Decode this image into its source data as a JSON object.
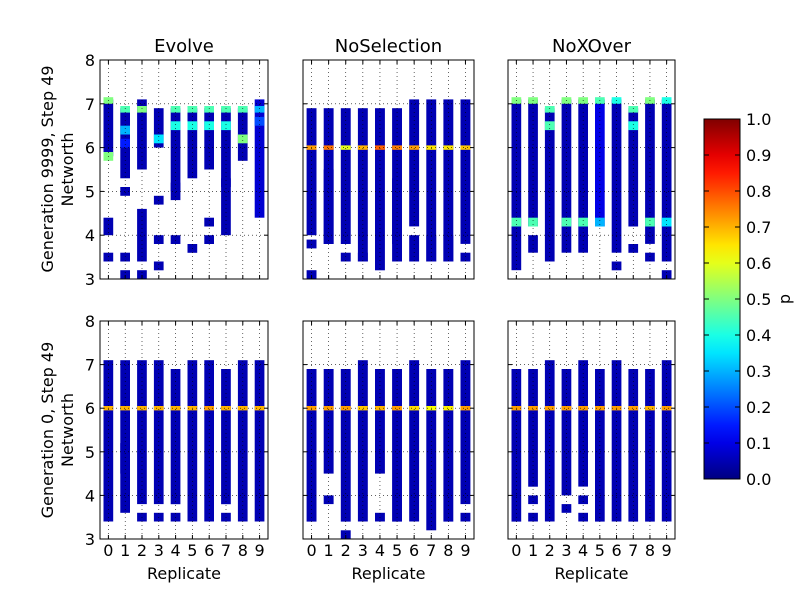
{
  "figure": {
    "row_labels": [
      "Generation 9999, Step 49",
      "Generation 0, Step 49"
    ],
    "colorbar": {
      "label": "p",
      "ticks": [
        "0.0",
        "0.1",
        "0.2",
        "0.3",
        "0.4",
        "0.5",
        "0.6",
        "0.7",
        "0.8",
        "0.9",
        "1.0"
      ]
    }
  },
  "chart_data": [
    {
      "type": "heatmap",
      "title": "Evolve",
      "xlabel": "",
      "ylabel": "Networth",
      "x": [
        0,
        1,
        2,
        3,
        4,
        5,
        6,
        7,
        8,
        9
      ],
      "xticks": [],
      "yticks": [
        "3",
        "4",
        "5",
        "6",
        "7",
        "8"
      ],
      "xlim": [
        -0.5,
        9.5
      ],
      "ylim": [
        3,
        8
      ],
      "grid": true,
      "colormap": "jet",
      "clim": [
        0,
        1
      ],
      "columns": [
        [
          [
            5.8,
            7.1,
            0.05
          ],
          [
            7.0,
            7.15,
            0.5
          ],
          [
            5.7,
            5.9,
            0.5
          ],
          [
            4.0,
            4.4,
            0.05
          ],
          [
            3.4,
            3.6,
            0.05
          ]
        ],
        [
          [
            5.3,
            6.9,
            0.05
          ],
          [
            6.8,
            6.95,
            0.45
          ],
          [
            6.3,
            6.5,
            0.3
          ],
          [
            6.0,
            6.2,
            0.15
          ],
          [
            4.9,
            5.1,
            0.05
          ],
          [
            3.4,
            3.6,
            0.05
          ],
          [
            3.0,
            3.2,
            0.05
          ]
        ],
        [
          [
            5.5,
            7.1,
            0.05
          ],
          [
            6.8,
            6.95,
            0.5
          ],
          [
            3.4,
            4.6,
            0.05
          ],
          [
            3.0,
            3.2,
            0.05
          ]
        ],
        [
          [
            6.0,
            6.9,
            0.05
          ],
          [
            6.1,
            6.3,
            0.35
          ],
          [
            4.7,
            4.9,
            0.05
          ],
          [
            3.8,
            4.0,
            0.05
          ],
          [
            3.2,
            3.4,
            0.05
          ]
        ],
        [
          [
            5.0,
            6.9,
            0.05
          ],
          [
            6.8,
            6.95,
            0.45
          ],
          [
            6.4,
            6.6,
            0.4
          ],
          [
            4.8,
            5.2,
            0.05
          ],
          [
            3.8,
            4.0,
            0.05
          ]
        ],
        [
          [
            5.3,
            6.9,
            0.05
          ],
          [
            6.8,
            6.95,
            0.45
          ],
          [
            6.4,
            6.6,
            0.4
          ],
          [
            3.6,
            3.8,
            0.05
          ]
        ],
        [
          [
            5.5,
            6.9,
            0.05
          ],
          [
            6.8,
            6.95,
            0.45
          ],
          [
            6.4,
            6.6,
            0.4
          ],
          [
            4.2,
            4.4,
            0.05
          ],
          [
            3.8,
            4.0,
            0.05
          ]
        ],
        [
          [
            4.0,
            6.9,
            0.05
          ],
          [
            6.8,
            6.95,
            0.45
          ],
          [
            6.4,
            6.6,
            0.4
          ],
          [
            5.1,
            5.3,
            0.05
          ]
        ],
        [
          [
            5.7,
            6.9,
            0.05
          ],
          [
            6.8,
            6.95,
            0.45
          ],
          [
            6.1,
            6.3,
            0.5
          ]
        ],
        [
          [
            4.4,
            7.1,
            0.08
          ],
          [
            6.8,
            6.95,
            0.3
          ],
          [
            6.5,
            6.7,
            0.2
          ]
        ]
      ]
    },
    {
      "type": "heatmap",
      "title": "NoSelection",
      "xlabel": "",
      "ylabel": "",
      "x": [
        0,
        1,
        2,
        3,
        4,
        5,
        6,
        7,
        8,
        9
      ],
      "xticks": [],
      "yticks": [],
      "xlim": [
        -0.5,
        9.5
      ],
      "ylim": [
        3,
        8
      ],
      "grid": true,
      "colormap": "jet",
      "clim": [
        0,
        1
      ],
      "columns": [
        [
          [
            4.0,
            6.9,
            0.05
          ],
          [
            5.95,
            6.05,
            0.72
          ],
          [
            3.7,
            3.9,
            0.05
          ],
          [
            3.0,
            3.2,
            0.05
          ]
        ],
        [
          [
            3.8,
            6.9,
            0.05
          ],
          [
            5.95,
            6.05,
            0.76
          ],
          [
            3.8,
            5.5,
            0.05
          ]
        ],
        [
          [
            3.8,
            6.9,
            0.05
          ],
          [
            5.95,
            6.05,
            0.6
          ],
          [
            3.4,
            3.6,
            0.05
          ]
        ],
        [
          [
            3.4,
            6.9,
            0.05
          ],
          [
            5.95,
            6.05,
            0.7
          ],
          [
            3.4,
            3.6,
            0.05
          ]
        ],
        [
          [
            3.2,
            6.9,
            0.05
          ],
          [
            5.95,
            6.05,
            0.78
          ]
        ],
        [
          [
            3.4,
            6.9,
            0.05
          ],
          [
            5.95,
            6.05,
            0.75
          ],
          [
            3.8,
            5.3,
            0.05
          ]
        ],
        [
          [
            4.2,
            7.1,
            0.05
          ],
          [
            5.95,
            6.05,
            0.72
          ],
          [
            3.4,
            4.0,
            0.05
          ]
        ],
        [
          [
            3.4,
            7.1,
            0.05
          ],
          [
            5.95,
            6.05,
            0.65
          ],
          [
            3.4,
            4.0,
            0.05
          ]
        ],
        [
          [
            3.4,
            7.1,
            0.05
          ],
          [
            5.95,
            6.05,
            0.65
          ],
          [
            3.4,
            4.0,
            0.05
          ]
        ],
        [
          [
            3.8,
            7.1,
            0.05
          ],
          [
            5.95,
            6.05,
            0.68
          ],
          [
            3.4,
            3.6,
            0.05
          ]
        ]
      ]
    },
    {
      "type": "heatmap",
      "title": "NoXOver",
      "xlabel": "",
      "ylabel": "",
      "x": [
        0,
        1,
        2,
        3,
        4,
        5,
        6,
        7,
        8,
        9
      ],
      "xticks": [],
      "yticks": [],
      "xlim": [
        -0.5,
        9.5
      ],
      "ylim": [
        3,
        8
      ],
      "grid": true,
      "colormap": "jet",
      "clim": [
        0,
        1
      ],
      "columns": [
        [
          [
            3.2,
            7.1,
            0.05
          ],
          [
            7.0,
            7.15,
            0.5
          ],
          [
            4.2,
            4.4,
            0.45
          ]
        ],
        [
          [
            4.2,
            7.1,
            0.05
          ],
          [
            7.0,
            7.15,
            0.5
          ],
          [
            4.2,
            4.4,
            0.45
          ],
          [
            3.6,
            4.0,
            0.05
          ]
        ],
        [
          [
            3.4,
            6.9,
            0.05
          ],
          [
            6.8,
            6.95,
            0.45
          ],
          [
            6.4,
            6.6,
            0.45
          ]
        ],
        [
          [
            3.6,
            7.1,
            0.05
          ],
          [
            7.0,
            7.15,
            0.5
          ],
          [
            4.2,
            4.4,
            0.45
          ]
        ],
        [
          [
            3.6,
            7.1,
            0.05
          ],
          [
            7.0,
            7.15,
            0.5
          ],
          [
            4.2,
            4.4,
            0.45
          ]
        ],
        [
          [
            4.2,
            7.1,
            0.1
          ],
          [
            7.0,
            7.15,
            0.45
          ],
          [
            4.2,
            4.4,
            0.3
          ]
        ],
        [
          [
            3.6,
            7.1,
            0.05
          ],
          [
            7.0,
            7.15,
            0.4
          ],
          [
            3.2,
            3.4,
            0.05
          ]
        ],
        [
          [
            4.2,
            6.9,
            0.05
          ],
          [
            6.8,
            6.95,
            0.45
          ],
          [
            6.4,
            6.6,
            0.4
          ],
          [
            3.6,
            3.8,
            0.05
          ]
        ],
        [
          [
            3.8,
            7.1,
            0.05
          ],
          [
            7.0,
            7.15,
            0.5
          ],
          [
            4.2,
            4.4,
            0.45
          ],
          [
            3.4,
            3.6,
            0.05
          ]
        ],
        [
          [
            3.4,
            7.1,
            0.05
          ],
          [
            7.0,
            7.15,
            0.4
          ],
          [
            4.2,
            4.4,
            0.35
          ],
          [
            3.0,
            3.2,
            0.05
          ]
        ]
      ]
    },
    {
      "type": "heatmap",
      "title": "",
      "xlabel": "Replicate",
      "ylabel": "Networth",
      "x": [
        0,
        1,
        2,
        3,
        4,
        5,
        6,
        7,
        8,
        9
      ],
      "xticks": [
        "0",
        "1",
        "2",
        "3",
        "4",
        "5",
        "6",
        "7",
        "8",
        "9"
      ],
      "yticks": [
        "3",
        "4",
        "5",
        "6",
        "7",
        "8"
      ],
      "xlim": [
        -0.5,
        9.5
      ],
      "ylim": [
        3,
        8
      ],
      "grid": true,
      "colormap": "jet",
      "clim": [
        0,
        1
      ],
      "columns": [
        [
          [
            3.4,
            7.1,
            0.05
          ],
          [
            5.95,
            6.05,
            0.7
          ]
        ],
        [
          [
            3.6,
            7.1,
            0.05
          ],
          [
            5.95,
            6.05,
            0.7
          ],
          [
            4.5,
            5.2,
            0.05
          ]
        ],
        [
          [
            3.8,
            7.1,
            0.05
          ],
          [
            5.95,
            6.05,
            0.7
          ],
          [
            3.4,
            3.6,
            0.05
          ]
        ],
        [
          [
            3.8,
            7.1,
            0.05
          ],
          [
            5.95,
            6.05,
            0.7
          ],
          [
            3.4,
            3.6,
            0.05
          ]
        ],
        [
          [
            3.8,
            6.9,
            0.05
          ],
          [
            5.95,
            6.05,
            0.7
          ],
          [
            3.4,
            3.6,
            0.05
          ]
        ],
        [
          [
            3.4,
            7.1,
            0.05
          ],
          [
            5.95,
            6.05,
            0.7
          ]
        ],
        [
          [
            3.4,
            7.1,
            0.05
          ],
          [
            5.95,
            6.05,
            0.72
          ]
        ],
        [
          [
            3.8,
            6.9,
            0.05
          ],
          [
            5.95,
            6.05,
            0.7
          ],
          [
            3.4,
            3.6,
            0.05
          ]
        ],
        [
          [
            3.4,
            7.1,
            0.05
          ],
          [
            5.95,
            6.05,
            0.7
          ]
        ],
        [
          [
            3.4,
            7.1,
            0.05
          ],
          [
            5.95,
            6.05,
            0.7
          ]
        ]
      ]
    },
    {
      "type": "heatmap",
      "title": "",
      "xlabel": "Replicate",
      "ylabel": "",
      "x": [
        0,
        1,
        2,
        3,
        4,
        5,
        6,
        7,
        8,
        9
      ],
      "xticks": [
        "0",
        "1",
        "2",
        "3",
        "4",
        "5",
        "6",
        "7",
        "8",
        "9"
      ],
      "yticks": [],
      "xlim": [
        -0.5,
        9.5
      ],
      "ylim": [
        3,
        8
      ],
      "grid": true,
      "colormap": "jet",
      "clim": [
        0,
        1
      ],
      "columns": [
        [
          [
            3.4,
            6.9,
            0.05
          ],
          [
            5.95,
            6.05,
            0.72
          ]
        ],
        [
          [
            4.5,
            6.9,
            0.05
          ],
          [
            5.95,
            6.05,
            0.72
          ],
          [
            3.8,
            4.0,
            0.05
          ]
        ],
        [
          [
            3.4,
            6.9,
            0.05
          ],
          [
            5.95,
            6.05,
            0.72
          ],
          [
            3.0,
            3.2,
            0.05
          ]
        ],
        [
          [
            3.4,
            7.1,
            0.05
          ],
          [
            5.95,
            6.05,
            0.68
          ]
        ],
        [
          [
            4.5,
            6.9,
            0.05
          ],
          [
            5.95,
            6.05,
            0.7
          ],
          [
            3.4,
            3.6,
            0.05
          ]
        ],
        [
          [
            3.4,
            6.9,
            0.05
          ],
          [
            5.95,
            6.05,
            0.72
          ]
        ],
        [
          [
            3.4,
            7.1,
            0.05
          ],
          [
            5.95,
            6.05,
            0.66
          ]
        ],
        [
          [
            3.2,
            6.9,
            0.05
          ],
          [
            5.95,
            6.05,
            0.62
          ]
        ],
        [
          [
            3.4,
            6.9,
            0.05
          ],
          [
            5.95,
            6.05,
            0.64
          ]
        ],
        [
          [
            3.8,
            7.1,
            0.05
          ],
          [
            5.95,
            6.05,
            0.72
          ],
          [
            3.4,
            3.6,
            0.05
          ]
        ]
      ]
    },
    {
      "type": "heatmap",
      "title": "",
      "xlabel": "Replicate",
      "ylabel": "",
      "x": [
        0,
        1,
        2,
        3,
        4,
        5,
        6,
        7,
        8,
        9
      ],
      "xticks": [
        "0",
        "1",
        "2",
        "3",
        "4",
        "5",
        "6",
        "7",
        "8",
        "9"
      ],
      "yticks": [],
      "xlim": [
        -0.5,
        9.5
      ],
      "ylim": [
        3,
        8
      ],
      "grid": true,
      "colormap": "jet",
      "clim": [
        0,
        1
      ],
      "columns": [
        [
          [
            3.4,
            6.9,
            0.05
          ],
          [
            5.95,
            6.05,
            0.72
          ]
        ],
        [
          [
            4.2,
            6.9,
            0.05
          ],
          [
            5.95,
            6.05,
            0.72
          ],
          [
            3.8,
            4.0,
            0.05
          ],
          [
            3.4,
            3.6,
            0.05
          ]
        ],
        [
          [
            3.4,
            7.1,
            0.05
          ],
          [
            5.95,
            6.05,
            0.72
          ]
        ],
        [
          [
            4.0,
            6.9,
            0.05
          ],
          [
            5.95,
            6.05,
            0.72
          ],
          [
            3.6,
            3.8,
            0.05
          ]
        ],
        [
          [
            4.2,
            7.1,
            0.05
          ],
          [
            5.95,
            6.05,
            0.72
          ],
          [
            3.8,
            4.0,
            0.05
          ],
          [
            3.4,
            3.6,
            0.05
          ]
        ],
        [
          [
            3.4,
            6.9,
            0.05
          ],
          [
            5.95,
            6.05,
            0.72
          ]
        ],
        [
          [
            3.4,
            7.1,
            0.05
          ],
          [
            5.95,
            6.05,
            0.72
          ]
        ],
        [
          [
            3.4,
            6.9,
            0.05
          ],
          [
            5.95,
            6.05,
            0.72
          ]
        ],
        [
          [
            3.4,
            6.9,
            0.05
          ],
          [
            5.95,
            6.05,
            0.7
          ]
        ],
        [
          [
            3.4,
            7.1,
            0.05
          ],
          [
            5.95,
            6.05,
            0.72
          ]
        ]
      ]
    }
  ]
}
